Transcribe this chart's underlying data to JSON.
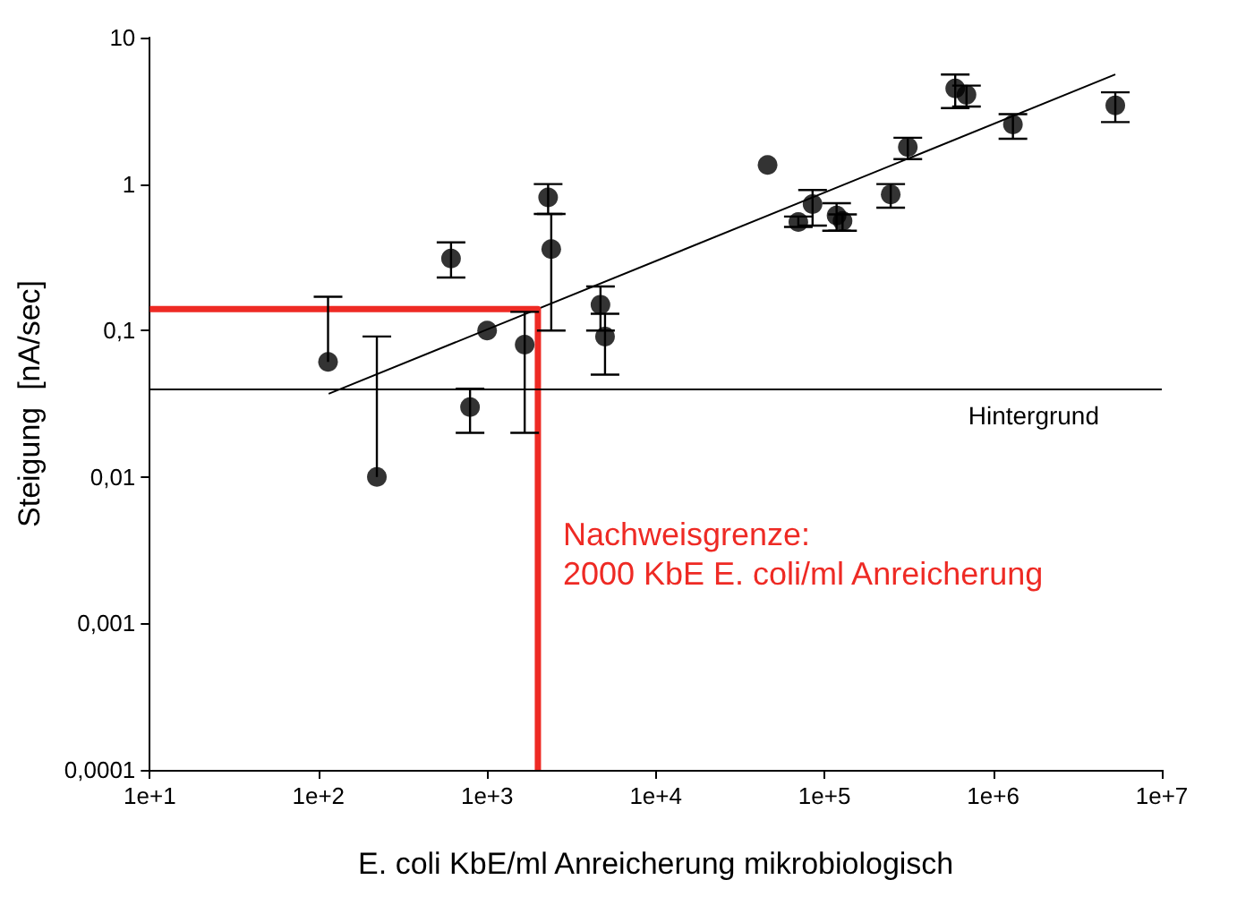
{
  "chart_data": {
    "type": "scatter",
    "xlabel": "E. coli KbE/ml Anreicherung mikrobiologisch",
    "ylabel": "Steigung  [nA/sec]",
    "log": "xy",
    "xlim": [
      10,
      10000000
    ],
    "ylim": [
      0.0001,
      10
    ],
    "xticks": [
      {
        "value": 10,
        "label": "1e+1"
      },
      {
        "value": 100,
        "label": "1e+2"
      },
      {
        "value": 1000,
        "label": "1e+3"
      },
      {
        "value": 10000,
        "label": "1e+4"
      },
      {
        "value": 100000,
        "label": "1e+5"
      },
      {
        "value": 1000000,
        "label": "1e+6"
      },
      {
        "value": 10000000,
        "label": "1e+7"
      }
    ],
    "yticks": [
      {
        "value": 0.0001,
        "label": "0,0001"
      },
      {
        "value": 0.001,
        "label": "0,001"
      },
      {
        "value": 0.01,
        "label": "0,01"
      },
      {
        "value": 0.1,
        "label": "0,1"
      },
      {
        "value": 1,
        "label": "1"
      },
      {
        "value": 10,
        "label": "10"
      }
    ],
    "grid": false,
    "marker": "circle",
    "series": [
      {
        "color": "#000000",
        "x": [
          114,
          222,
          611,
          792,
          1000,
          1670,
          2300,
          2400,
          4700,
          5000,
          46000,
          70000,
          85000,
          118000,
          128000,
          247000,
          312000,
          596000,
          695000,
          1310000,
          5300000
        ],
        "values": [
          0.061,
          0.01,
          0.31,
          0.03,
          0.1,
          0.08,
          0.81,
          0.36,
          0.15,
          0.091,
          1.35,
          0.55,
          0.73,
          0.61,
          0.56,
          0.85,
          1.79,
          4.5,
          4.07,
          2.55,
          3.44
        ],
        "errors": [
          [
            0.061,
            0.17
          ],
          [
            0.01,
            0.091
          ],
          [
            0.23,
            0.4
          ],
          [
            0.02,
            0.04
          ],
          null,
          [
            0.02,
            0.134
          ],
          [
            0.625,
            1.0
          ],
          [
            0.1,
            0.625
          ],
          [
            0.1,
            0.2
          ],
          [
            0.05,
            0.13
          ],
          null,
          [
            0.51,
            0.6
          ],
          [
            0.52,
            0.91
          ],
          [
            0.48,
            0.74
          ],
          [
            0.48,
            0.62
          ],
          [
            0.69,
            1.0
          ],
          [
            1.48,
            2.07
          ],
          [
            3.3,
            5.6
          ],
          [
            3.38,
            4.7
          ],
          [
            2.04,
            3.0
          ],
          [
            2.65,
            4.23
          ]
        ]
      },
      {
        "type": "line",
        "color": "#000000",
        "marker": "none",
        "x": [
          115,
          5300000
        ],
        "values": [
          0.037,
          5.6
        ]
      },
      {
        "type": "line",
        "color": "#ee2a24",
        "marker": "none",
        "x": [
          10,
          2000,
          2000
        ],
        "values": [
          0.14,
          0.14,
          0.0001
        ]
      }
    ],
    "ref_lines": [
      {
        "axis": "y",
        "value": 0.039,
        "label": "Hintergrund",
        "color": "#000000"
      }
    ],
    "annotations": [
      {
        "text": "Nachweisgrenze:\n2000 KbE E. coli/ml Anreicherung",
        "x": 2000,
        "y": 0.0025
      }
    ]
  }
}
